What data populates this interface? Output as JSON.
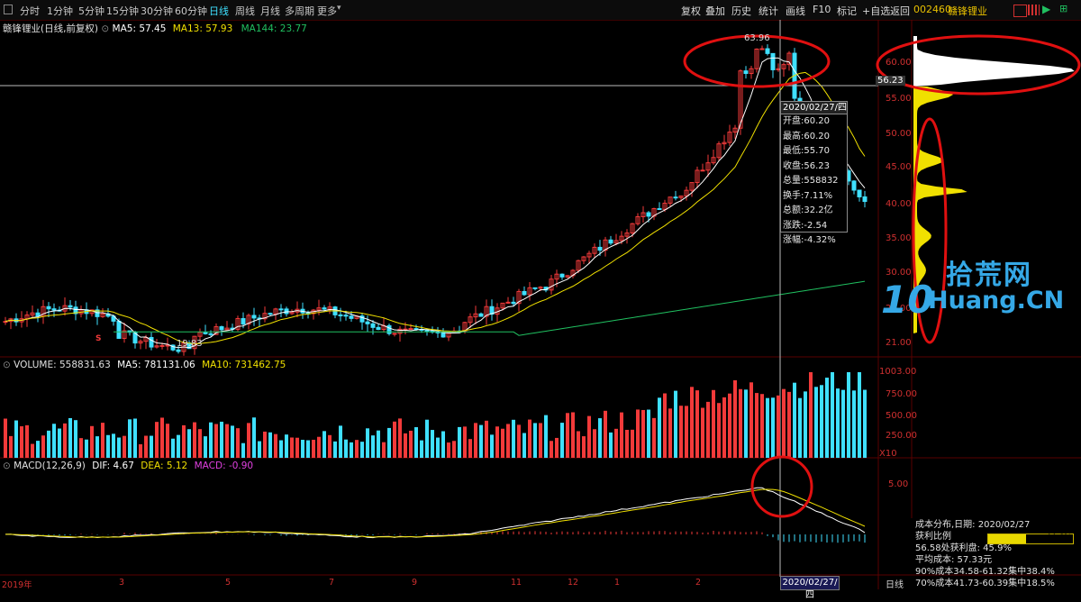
{
  "toolbar": {
    "timeframes": [
      "分时",
      "1分钟",
      "5分钟",
      "15分钟",
      "30分钟",
      "60分钟",
      "日线",
      "周线",
      "月线",
      "多周期",
      "更多"
    ],
    "active_timeframe": "日线",
    "actions": [
      "复权",
      "叠加",
      "历史",
      "统计",
      "画线",
      "F10",
      "标记",
      "+自选",
      "返回"
    ],
    "stock_code": "002460",
    "stock_name": "赣锋锂业"
  },
  "main_header": {
    "title": "赣锋锂业(日线,前复权)",
    "ma5": "MA5: 57.45",
    "ma13": "MA13: 57.93",
    "ma144": "MA144: 23.77"
  },
  "price_axis": [
    "60.00",
    "55.00",
    "50.00",
    "45.00",
    "40.00",
    "35.00",
    "30.00",
    "25.00",
    "21.00"
  ],
  "price_cross": "56.23",
  "price_markers": {
    "high": "63.96",
    "low": "19.83",
    "signal": "S"
  },
  "tooltip": {
    "date": "2020/02/27/四",
    "rows": [
      "开盘:60.20",
      "最高:60.20",
      "最低:55.70",
      "收盘:56.23",
      "总量:558832",
      "换手:7.11%",
      "总额:32.2亿",
      "涨跌:-2.54",
      "涨幅:-4.32%"
    ]
  },
  "volume_header": {
    "title": "VOLUME: 558831.63",
    "ma5": "MA5: 781131.06",
    "ma10": "MA10: 731462.75"
  },
  "volume_axis": [
    "1003.00",
    "750.00",
    "500.00",
    "250.00",
    "X10"
  ],
  "macd_header": {
    "title": "MACD(12,26,9)",
    "dif": "DIF: 4.67",
    "dea": "DEA: 5.12",
    "macd": "MACD: -0.90"
  },
  "macd_axis": [
    "5.00"
  ],
  "bottom_axis": [
    "2019年",
    "3",
    "5",
    "7",
    "9",
    "11",
    "12",
    "1",
    "2"
  ],
  "cross_date": "2020/02/27/四",
  "period_label": "日线",
  "cost_panel": {
    "title": "成本分布,日期: 2020/02/27",
    "profit_label": "获利比例",
    "profit_ratio": 44.6,
    "profit_text": "44.6%",
    "line1": "56.58处获利盘: 45.9%",
    "line2": "平均成本: 57.33元",
    "line3": "90%成本34.58-61.32集中38.4%",
    "line4": "70%成本41.73-60.39集中18.5%"
  },
  "watermark": {
    "cn": "拾荒网",
    "ten": "10",
    "en": "Huang.CN"
  },
  "colors": {
    "up": "#f23a3a",
    "down": "#3fe0ff",
    "ma5": "#ffffff",
    "ma13": "#f0e000",
    "ma144": "#20c060",
    "annotation": "#e01010"
  }
}
